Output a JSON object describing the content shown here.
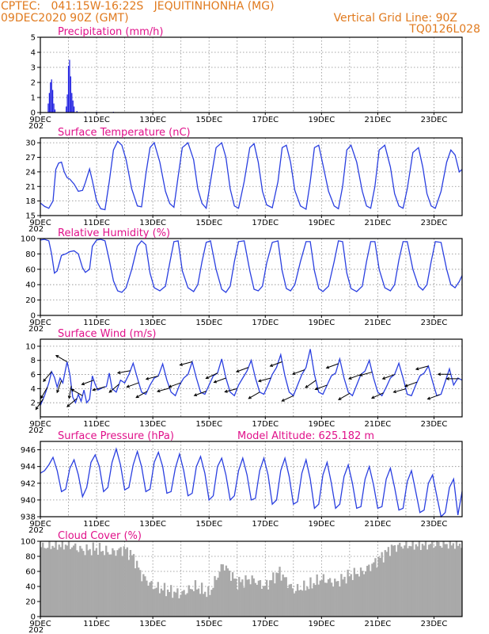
{
  "header": {
    "line1_left": "CPTEC:   041:15W-16:22S   JEQUITINHONHA (MG)",
    "line2_left": "09DEC2020 90Z (GMT)",
    "line1_right": "Vertical Grid Line: 90Z",
    "line2_right": "TQ0126L028"
  },
  "x_axis": {
    "labels": [
      "9DEC",
      "11DEC",
      "13DEC",
      "15DEC",
      "17DEC",
      "19DEC",
      "21DEC",
      "23DEC"
    ],
    "label_days": [
      0,
      2,
      4,
      6,
      8,
      10,
      12,
      14
    ],
    "total_days": 15,
    "cropped_year": "202"
  },
  "colors": {
    "line": "#2a3fe0",
    "bar": "#1f1fe0",
    "cloud": "#a9a9a9",
    "title": "#e0118a",
    "header": "#e07a1e"
  },
  "chart_data": [
    {
      "id": "precip",
      "type": "bar",
      "title": "Precipitation (mm/h)",
      "ylim": [
        0,
        5
      ],
      "yticks": [
        0,
        1,
        2,
        3,
        4,
        5
      ],
      "grid": true,
      "x_days": [
        0.28,
        0.32,
        0.36,
        0.4,
        0.44,
        0.48,
        0.52,
        0.92,
        0.96,
        1.0,
        1.04,
        1.08,
        1.12,
        1.16,
        1.2,
        1.3,
        1.6,
        2.0,
        2.6
      ],
      "values": [
        0.6,
        1.3,
        2.0,
        2.2,
        1.5,
        0.6,
        0.2,
        0.4,
        1.2,
        3.1,
        3.5,
        2.4,
        1.3,
        0.8,
        0.4,
        0.1,
        0.05,
        0.05,
        0.05
      ]
    },
    {
      "id": "temp",
      "type": "line",
      "title": "Surface Temperature (nC)",
      "ylim": [
        15,
        31
      ],
      "yticks": [
        15,
        18,
        21,
        24,
        27,
        30
      ],
      "grid": true,
      "x_days": [
        0.0,
        0.15,
        0.3,
        0.45,
        0.55,
        0.65,
        0.75,
        0.85,
        0.95,
        1.05,
        1.2,
        1.35,
        1.5,
        1.6,
        1.75,
        1.85,
        2.0,
        2.15,
        2.3,
        2.45,
        2.6,
        2.75,
        2.9,
        3.05,
        3.25,
        3.45,
        3.6,
        3.75,
        3.9,
        4.05,
        4.25,
        4.45,
        4.6,
        4.75,
        4.9,
        5.05,
        5.25,
        5.45,
        5.6,
        5.75,
        5.9,
        6.05,
        6.25,
        6.45,
        6.6,
        6.75,
        6.9,
        7.05,
        7.25,
        7.45,
        7.6,
        7.75,
        7.9,
        8.05,
        8.25,
        8.45,
        8.6,
        8.75,
        8.9,
        9.05,
        9.25,
        9.45,
        9.6,
        9.75,
        9.9,
        10.05,
        10.25,
        10.45,
        10.6,
        10.75,
        10.9,
        11.05,
        11.25,
        11.45,
        11.6,
        11.75,
        11.9,
        12.05,
        12.25,
        12.45,
        12.6,
        12.75,
        12.9,
        13.05,
        13.25,
        13.45,
        13.6,
        13.75,
        13.9,
        14.05,
        14.25,
        14.45,
        14.6,
        14.75,
        14.9,
        15.0
      ],
      "values": [
        17.6,
        16.9,
        16.5,
        18.0,
        24.5,
        25.8,
        26.0,
        24.0,
        22.8,
        22.5,
        21.5,
        20.0,
        20.2,
        21.8,
        24.6,
        22.2,
        18.0,
        16.4,
        16.2,
        22.0,
        28.5,
        30.3,
        29.5,
        26.5,
        20.5,
        17.0,
        16.8,
        23.5,
        29.0,
        30.0,
        26.0,
        20.0,
        17.5,
        16.7,
        23.0,
        29.0,
        30.0,
        26.5,
        20.5,
        17.5,
        16.5,
        22.0,
        29.0,
        30.0,
        27.0,
        20.5,
        17.0,
        16.5,
        22.0,
        29.0,
        29.8,
        26.0,
        20.0,
        17.2,
        16.6,
        22.0,
        29.0,
        29.5,
        26.0,
        20.2,
        17.0,
        16.3,
        22.0,
        29.0,
        29.5,
        25.5,
        20.0,
        17.0,
        16.4,
        21.0,
        28.5,
        29.5,
        26.0,
        20.0,
        17.0,
        16.5,
        21.0,
        28.5,
        29.5,
        25.0,
        19.5,
        17.0,
        16.5,
        20.5,
        28.0,
        29.0,
        25.0,
        19.5,
        17.0,
        16.5,
        20.0,
        26.0,
        28.5,
        27.5,
        24.0,
        24.5
      ]
    },
    {
      "id": "rh",
      "type": "line",
      "title": "Relative Humidity (%)",
      "ylim": [
        0,
        100
      ],
      "yticks": [
        0,
        20,
        40,
        60,
        80,
        100
      ],
      "grid": true,
      "x_days": [
        0.0,
        0.15,
        0.3,
        0.4,
        0.5,
        0.6,
        0.75,
        0.9,
        1.05,
        1.2,
        1.35,
        1.5,
        1.6,
        1.75,
        1.85,
        2.0,
        2.15,
        2.3,
        2.45,
        2.6,
        2.75,
        2.9,
        3.05,
        3.25,
        3.45,
        3.6,
        3.75,
        3.9,
        4.05,
        4.25,
        4.45,
        4.6,
        4.75,
        4.9,
        5.05,
        5.25,
        5.45,
        5.6,
        5.75,
        5.9,
        6.05,
        6.25,
        6.45,
        6.6,
        6.75,
        6.9,
        7.05,
        7.25,
        7.45,
        7.6,
        7.75,
        7.9,
        8.05,
        8.25,
        8.45,
        8.6,
        8.75,
        8.9,
        9.05,
        9.25,
        9.45,
        9.6,
        9.75,
        9.9,
        10.05,
        10.25,
        10.45,
        10.6,
        10.75,
        10.9,
        11.05,
        11.25,
        11.45,
        11.6,
        11.75,
        11.9,
        12.05,
        12.25,
        12.45,
        12.6,
        12.75,
        12.9,
        13.05,
        13.25,
        13.45,
        13.6,
        13.75,
        13.9,
        14.05,
        14.25,
        14.45,
        14.6,
        14.75,
        14.9,
        15.0
      ],
      "values": [
        98,
        99,
        97,
        80,
        55,
        58,
        78,
        80,
        83,
        84,
        80,
        62,
        56,
        60,
        90,
        98,
        99,
        97,
        72,
        45,
        32,
        30,
        36,
        60,
        90,
        97,
        92,
        55,
        36,
        32,
        38,
        68,
        96,
        97,
        58,
        36,
        31,
        40,
        70,
        95,
        97,
        60,
        34,
        30,
        38,
        70,
        96,
        97,
        58,
        34,
        32,
        38,
        68,
        95,
        97,
        58,
        35,
        32,
        40,
        70,
        96,
        96,
        58,
        35,
        31,
        38,
        70,
        97,
        96,
        55,
        35,
        31,
        38,
        70,
        96,
        96,
        60,
        36,
        32,
        40,
        72,
        96,
        96,
        60,
        38,
        33,
        40,
        70,
        96,
        95,
        60,
        40,
        36,
        44,
        52
      ]
    },
    {
      "id": "wind",
      "type": "line",
      "title": "Surface Wind (m/s)",
      "ylim": [
        0,
        11
      ],
      "yticks": [
        2,
        4,
        6,
        8,
        10
      ],
      "grid": true,
      "x_days": [
        0.0,
        0.15,
        0.3,
        0.4,
        0.5,
        0.6,
        0.7,
        0.8,
        0.95,
        1.05,
        1.15,
        1.25,
        1.35,
        1.45,
        1.55,
        1.65,
        1.75,
        1.85,
        1.95,
        2.05,
        2.15,
        2.25,
        2.35,
        2.45,
        2.55,
        2.7,
        2.85,
        3.0,
        3.15,
        3.3,
        3.45,
        3.6,
        3.75,
        3.9,
        4.05,
        4.2,
        4.35,
        4.5,
        4.65,
        4.8,
        4.95,
        5.1,
        5.25,
        5.4,
        5.55,
        5.7,
        5.85,
        6.0,
        6.15,
        6.3,
        6.45,
        6.6,
        6.75,
        6.9,
        7.05,
        7.2,
        7.35,
        7.5,
        7.65,
        7.8,
        7.95,
        8.1,
        8.25,
        8.4,
        8.55,
        8.7,
        8.85,
        9.0,
        9.15,
        9.3,
        9.45,
        9.6,
        9.75,
        9.9,
        10.05,
        10.2,
        10.35,
        10.5,
        10.65,
        10.8,
        10.95,
        11.1,
        11.25,
        11.4,
        11.55,
        11.7,
        11.85,
        12.0,
        12.15,
        12.3,
        12.45,
        12.6,
        12.75,
        12.9,
        13.05,
        13.2,
        13.35,
        13.5,
        13.65,
        13.8,
        13.95,
        14.1,
        14.25,
        14.4,
        14.55,
        14.7,
        14.85,
        15.0
      ],
      "values": [
        1.6,
        3.0,
        4.8,
        6.4,
        5.6,
        4.2,
        5.5,
        4.8,
        7.8,
        6.0,
        2.8,
        2.0,
        3.2,
        2.2,
        3.8,
        2.0,
        2.5,
        5.8,
        4.6,
        3.8,
        4.0,
        4.2,
        4.3,
        6.2,
        4.0,
        3.5,
        5.2,
        4.8,
        6.0,
        7.6,
        5.5,
        3.5,
        3.2,
        4.5,
        5.5,
        5.8,
        7.5,
        5.2,
        3.5,
        3.0,
        4.5,
        5.5,
        6.0,
        7.8,
        5.5,
        3.5,
        3.2,
        4.5,
        5.8,
        6.2,
        8.2,
        5.5,
        3.5,
        3.0,
        4.5,
        5.5,
        6.5,
        8.0,
        5.5,
        3.5,
        3.2,
        4.5,
        6.0,
        7.0,
        8.8,
        5.8,
        3.5,
        3.0,
        4.5,
        6.0,
        7.0,
        9.6,
        6.0,
        3.5,
        3.2,
        4.5,
        5.8,
        6.2,
        8.2,
        5.5,
        3.5,
        3.0,
        4.5,
        6.0,
        6.5,
        8.0,
        5.5,
        3.5,
        3.0,
        4.2,
        5.5,
        6.0,
        7.6,
        5.5,
        3.2,
        3.0,
        4.5,
        5.8,
        6.2,
        7.2,
        5.0,
        3.0,
        3.2,
        5.0,
        6.8,
        4.5,
        5.5,
        5.2
      ],
      "barbs": {
        "note": "direction arrows (degrees, math convention) at sample times",
        "x_days": [
          0.1,
          0.25,
          0.4,
          0.75,
          0.95,
          1.1,
          1.3,
          1.5,
          1.9,
          2.3,
          2.8,
          3.2,
          3.5,
          3.8,
          4.2,
          4.6,
          5.0,
          5.4,
          5.9,
          6.3,
          6.6,
          7.0,
          7.4,
          7.8,
          8.2,
          8.6,
          9.0,
          9.4,
          9.8,
          10.2,
          10.6,
          11.0,
          11.4,
          11.8,
          12.2,
          12.6,
          13.0,
          13.4,
          13.8,
          14.2,
          14.6,
          14.9
        ],
        "dirs": [
          235,
          240,
          230,
          250,
          150,
          260,
          220,
          150,
          200,
          195,
          220,
          190,
          200,
          210,
          195,
          195,
          200,
          195,
          200,
          205,
          200,
          195,
          200,
          210,
          195,
          200,
          205,
          200,
          215,
          200,
          200,
          210,
          200,
          195,
          205,
          200,
          195,
          200,
          195,
          200,
          180,
          180
        ]
      }
    },
    {
      "id": "pressure",
      "type": "line",
      "title": "Surface Pressure (hPa)",
      "annotation": "Model Altitude: 625.182  m",
      "ylim": [
        938,
        947
      ],
      "yticks": [
        938,
        940,
        942,
        944,
        946
      ],
      "grid": true,
      "x_days": [
        0.0,
        0.15,
        0.3,
        0.45,
        0.6,
        0.75,
        0.9,
        1.05,
        1.2,
        1.35,
        1.5,
        1.65,
        1.8,
        1.95,
        2.1,
        2.25,
        2.4,
        2.55,
        2.7,
        2.85,
        3.0,
        3.15,
        3.3,
        3.45,
        3.6,
        3.75,
        3.9,
        4.05,
        4.2,
        4.35,
        4.5,
        4.65,
        4.8,
        4.95,
        5.1,
        5.25,
        5.4,
        5.55,
        5.7,
        5.85,
        6.0,
        6.15,
        6.3,
        6.45,
        6.6,
        6.75,
        6.9,
        7.05,
        7.2,
        7.35,
        7.5,
        7.65,
        7.8,
        7.95,
        8.1,
        8.25,
        8.4,
        8.55,
        8.7,
        8.85,
        9.0,
        9.15,
        9.3,
        9.45,
        9.6,
        9.75,
        9.9,
        10.05,
        10.2,
        10.35,
        10.5,
        10.65,
        10.8,
        10.95,
        11.1,
        11.25,
        11.4,
        11.55,
        11.7,
        11.85,
        12.0,
        12.15,
        12.3,
        12.45,
        12.6,
        12.75,
        12.9,
        13.05,
        13.2,
        13.35,
        13.5,
        13.65,
        13.8,
        13.95,
        14.1,
        14.25,
        14.4,
        14.55,
        14.7,
        14.85,
        15.0
      ],
      "values": [
        943.2,
        943.5,
        944.2,
        945.1,
        943.5,
        941.0,
        941.3,
        943.8,
        944.8,
        943.0,
        940.4,
        941.5,
        944.5,
        945.4,
        944.0,
        941.0,
        941.5,
        944.5,
        946.1,
        944.2,
        941.2,
        941.5,
        944.2,
        945.8,
        944.0,
        941.0,
        941.3,
        944.5,
        945.7,
        944.0,
        940.8,
        941.0,
        943.8,
        945.5,
        943.5,
        940.5,
        940.8,
        944.0,
        945.2,
        943.2,
        940.0,
        940.5,
        944.0,
        945.0,
        943.0,
        940.0,
        940.5,
        943.5,
        945.0,
        943.0,
        940.0,
        940.2,
        943.5,
        945.0,
        943.0,
        939.5,
        940.0,
        943.5,
        945.0,
        942.8,
        939.5,
        939.8,
        943.2,
        944.8,
        942.5,
        939.0,
        939.5,
        943.0,
        944.5,
        942.0,
        939.0,
        939.5,
        942.8,
        944.2,
        942.0,
        939.0,
        939.2,
        942.5,
        944.0,
        941.8,
        939.0,
        939.2,
        942.5,
        943.8,
        941.5,
        938.8,
        939.0,
        942.2,
        943.5,
        941.0,
        938.5,
        938.8,
        942.0,
        943.0,
        940.5,
        938.0,
        938.5,
        941.5,
        942.5,
        938.2,
        941.0
      ]
    },
    {
      "id": "cloud",
      "type": "bar",
      "title": "Cloud Cover (%)",
      "ylim": [
        0,
        100
      ],
      "yticks": [
        0,
        20,
        40,
        60,
        80,
        100
      ],
      "grid": true,
      "profile_days": [
        0.0,
        0.5,
        1.0,
        1.5,
        2.0,
        2.5,
        3.0,
        3.3,
        3.6,
        4.0,
        4.5,
        5.0,
        5.5,
        6.0,
        6.5,
        7.0,
        7.5,
        8.0,
        8.5,
        9.0,
        9.5,
        10.0,
        10.5,
        11.0,
        11.5,
        12.0,
        12.5,
        13.0,
        13.5,
        14.0,
        14.5,
        15.0
      ],
      "profile_values": [
        92,
        95,
        96,
        88,
        90,
        85,
        90,
        80,
        55,
        40,
        35,
        30,
        40,
        30,
        70,
        45,
        50,
        40,
        60,
        35,
        40,
        50,
        45,
        55,
        60,
        75,
        92,
        95,
        96,
        96,
        97,
        97
      ]
    }
  ]
}
